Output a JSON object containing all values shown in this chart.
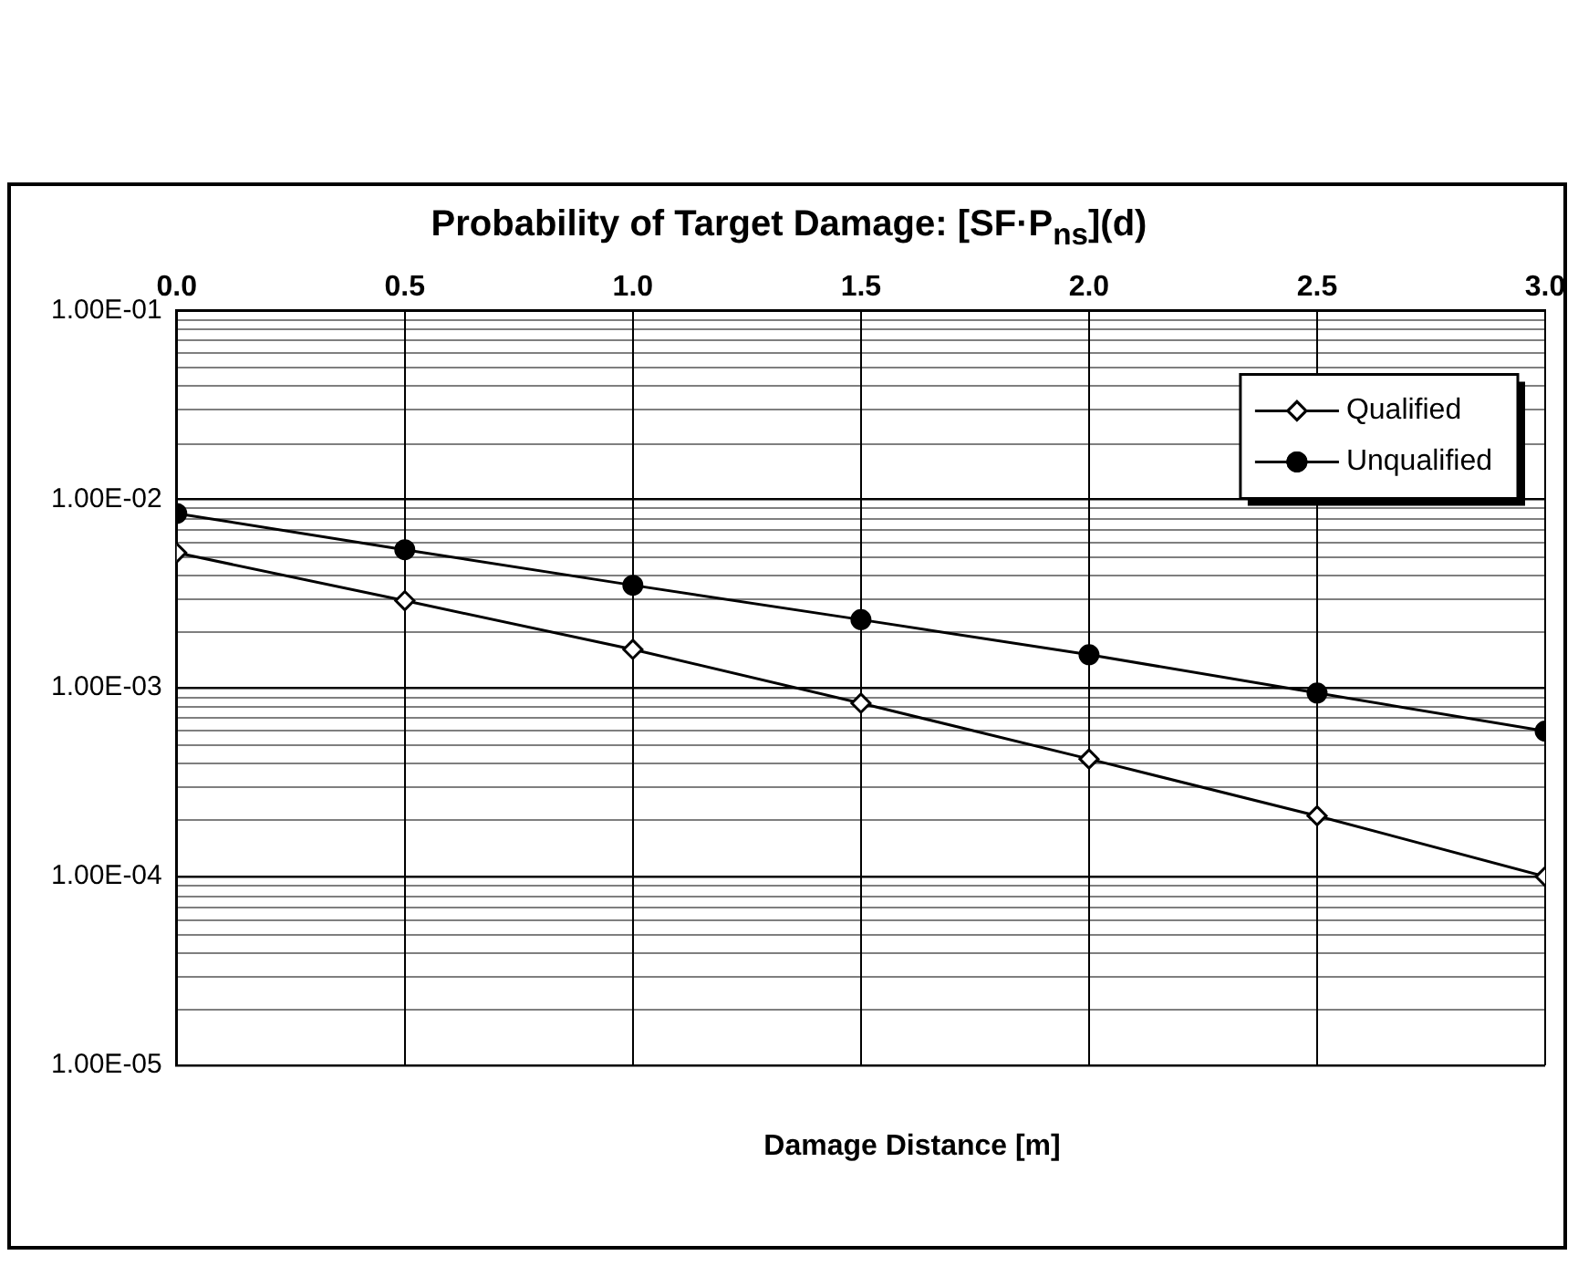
{
  "chart_data": {
    "type": "line",
    "title": "Probability of Target Damage: [SF·P$_{ns}$](d)",
    "xlabel": "Damage Distance [m]",
    "x": [
      0,
      0.5,
      1,
      1.5,
      2,
      2.5,
      3
    ],
    "series": [
      {
        "name": "Qualified",
        "color": "#000000",
        "marker": "diamond",
        "values": [
          0.0052,
          0.0029,
          0.0016,
          0.00083,
          0.00042,
          0.00021,
          0.0001
        ]
      },
      {
        "name": "Unqualified",
        "color": "#000000",
        "marker": "circle",
        "values": [
          0.0084,
          0.0054,
          0.0035,
          0.0023,
          0.0015,
          0.00094,
          0.00059
        ]
      }
    ],
    "log": "y",
    "xlim": [
      0,
      3
    ],
    "xticks": [
      {
        "value": 0,
        "label": "0.0"
      },
      {
        "value": 0.5,
        "label": "0.5"
      },
      {
        "value": 1,
        "label": "1.0"
      },
      {
        "value": 1.5,
        "label": "1.5"
      },
      {
        "value": 2,
        "label": "2.0"
      },
      {
        "value": 2.5,
        "label": "2.5"
      },
      {
        "value": 3,
        "label": "3.0"
      }
    ],
    "ylim": [
      1e-05,
      0.1
    ],
    "yticks": [
      {
        "value": 1e-05,
        "label": "1.00E-05"
      },
      {
        "value": 0.0001,
        "label": "1.00E-04"
      },
      {
        "value": 0.001,
        "label": "1.00E-03"
      },
      {
        "value": 0.01,
        "label": "1.00E-02"
      },
      {
        "value": 0.1,
        "label": "1.00E-01"
      }
    ],
    "grid": true,
    "legend": "top right",
    "line_style": "solid"
  }
}
